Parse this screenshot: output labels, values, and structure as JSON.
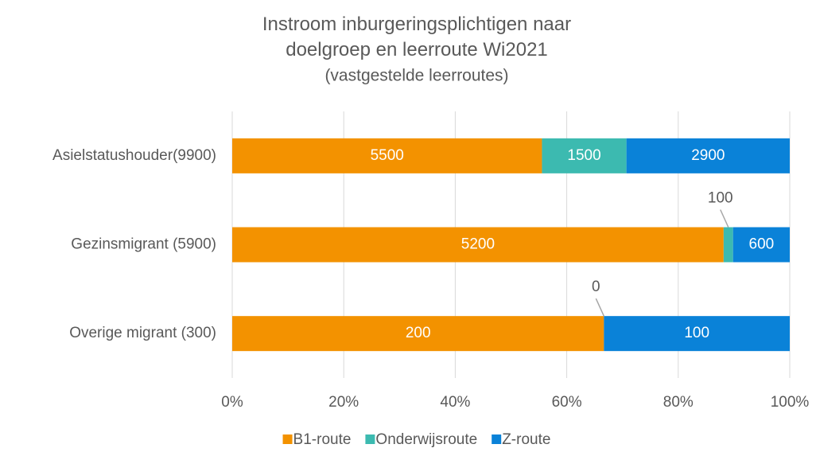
{
  "chart_data": {
    "type": "bar",
    "orientation": "horizontal",
    "stack": "percent",
    "title": "Instroom inburgeringsplichtigen naar doelgroep en leerroute Wi2021",
    "subtitle": "(vastgestelde leerroutes)",
    "categories": [
      "Asielstatushouder(9900)",
      "Gezinsmigrant (5900)",
      "Overige migrant (300)"
    ],
    "series": [
      {
        "name": "B1-route",
        "color": "#f39200",
        "values": [
          5500,
          5200,
          200
        ]
      },
      {
        "name": "Onderwijsroute",
        "color": "#3cbab0",
        "values": [
          1500,
          100,
          0
        ]
      },
      {
        "name": "Z-route",
        "color": "#0a82d8",
        "values": [
          2900,
          600,
          100
        ]
      }
    ],
    "xlim": [
      0,
      100
    ],
    "xticks": [
      {
        "value": 0,
        "label": "0%"
      },
      {
        "value": 20,
        "label": "20%"
      },
      {
        "value": 40,
        "label": "40%"
      },
      {
        "value": 60,
        "label": "60%"
      },
      {
        "value": 80,
        "label": "80%"
      },
      {
        "value": 100,
        "label": "100%"
      }
    ],
    "grid": true,
    "legend": "bottom"
  }
}
